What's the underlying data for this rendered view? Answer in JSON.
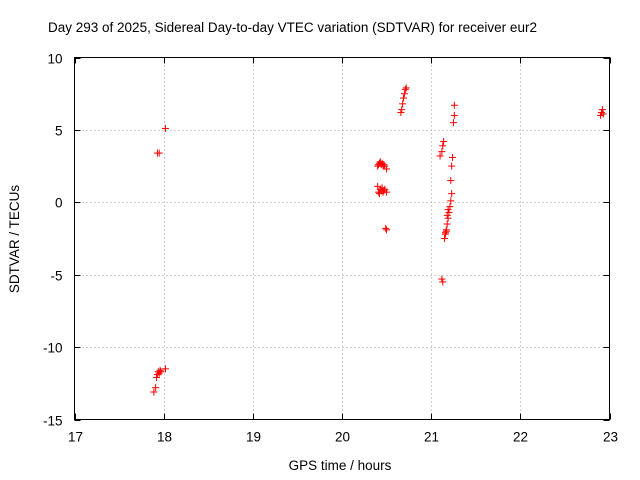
{
  "chart_data": {
    "type": "scatter",
    "title": "Day 293 of 2025, Sidereal Day-to-day VTEC variation (SDTVAR) for receiver eur2",
    "xlabel": "GPS time / hours",
    "ylabel": "SDTVAR / TECUs",
    "xlim": [
      17,
      23
    ],
    "ylim": [
      -15,
      10
    ],
    "xticks": [
      17,
      18,
      19,
      20,
      21,
      22,
      23
    ],
    "yticks": [
      -15,
      -10,
      -5,
      0,
      5,
      10
    ],
    "xtick_labels": [
      "17",
      "18",
      "19",
      "20",
      "21",
      "22",
      "23"
    ],
    "ytick_labels": [
      "-15",
      "-10",
      "-5",
      "0",
      "5",
      "10"
    ],
    "grid": true,
    "marker": "+",
    "color": "#ff0000",
    "series": [
      {
        "name": "SDTVAR",
        "x": [
          17.93,
          17.95,
          18.02,
          17.89,
          17.91,
          17.92,
          17.93,
          17.94,
          17.95,
          17.96,
          17.97,
          18.02,
          20.4,
          20.41,
          20.42,
          20.43,
          20.44,
          20.45,
          20.46,
          20.47,
          20.48,
          20.5,
          20.4,
          20.41,
          20.42,
          20.43,
          20.44,
          20.45,
          20.46,
          20.47,
          20.48,
          20.5,
          20.49,
          20.5,
          20.66,
          20.67,
          20.68,
          20.69,
          20.7,
          20.71,
          20.72,
          21.1,
          21.12,
          21.13,
          21.14,
          21.12,
          21.13,
          21.15,
          21.16,
          21.17,
          21.18,
          21.19,
          21.2,
          21.21,
          21.22,
          21.23,
          21.16,
          21.17,
          21.18,
          21.19,
          21.22,
          21.23,
          21.24,
          21.25,
          21.26,
          21.26,
          22.9,
          22.91,
          22.92,
          22.93
        ],
        "y": [
          3.4,
          3.4,
          5.1,
          -13.1,
          -12.8,
          -12.1,
          -11.9,
          -11.7,
          -11.8,
          -11.6,
          -11.7,
          -11.5,
          2.5,
          2.6,
          2.7,
          2.8,
          2.6,
          2.7,
          2.5,
          2.6,
          2.5,
          2.3,
          1.1,
          0.7,
          0.6,
          0.9,
          0.8,
          1.0,
          0.7,
          0.8,
          0.9,
          0.7,
          -1.8,
          -1.9,
          6.2,
          6.4,
          6.8,
          7.2,
          7.5,
          7.8,
          7.9,
          3.2,
          3.5,
          3.9,
          4.2,
          -5.3,
          -5.5,
          -2.5,
          -2.2,
          -2.0,
          -1.5,
          -1.1,
          -0.7,
          -0.3,
          0.1,
          0.6,
          -2.1,
          -1.9,
          -0.9,
          -0.5,
          1.5,
          2.5,
          3.1,
          5.5,
          6.0,
          6.7,
          6.0,
          6.2,
          6.4,
          6.1
        ]
      }
    ]
  }
}
